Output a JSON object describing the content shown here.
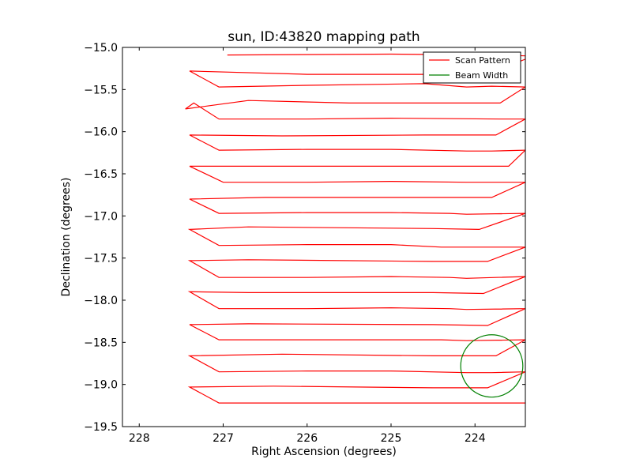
{
  "chart_data": {
    "type": "line",
    "title": "sun, ID:43820 mapping path",
    "xlabel": "Right Ascension (degrees)",
    "ylabel": "Declination (degrees)",
    "xlim": [
      228.2,
      223.4
    ],
    "ylim": [
      -19.5,
      -15.0
    ],
    "xticks": [
      228,
      227,
      226,
      225,
      224
    ],
    "yticks": [
      -15.0,
      -15.5,
      -16.0,
      -16.5,
      -17.0,
      -17.5,
      -18.0,
      -18.5,
      -19.0,
      -19.5
    ],
    "xtick_labels": [
      "228",
      "227",
      "226",
      "225",
      "224"
    ],
    "ytick_labels": [
      "−15.0",
      "−15.5",
      "−16.0",
      "−16.5",
      "−17.0",
      "−17.5",
      "−18.0",
      "−18.5",
      "−19.0",
      "−19.5"
    ],
    "grid": false,
    "legend_position": "top-right",
    "series": [
      {
        "name": "Scan Pattern",
        "color": "#ff0000",
        "points": [
          [
            226.95,
            -15.09
          ],
          [
            225.0,
            -15.08
          ],
          [
            223.8,
            -15.09
          ],
          [
            223.4,
            -15.1
          ],
          [
            223.4,
            -15.14
          ],
          [
            223.8,
            -15.3
          ],
          [
            224.4,
            -15.32
          ],
          [
            226.0,
            -15.32
          ],
          [
            227.4,
            -15.28
          ],
          [
            227.05,
            -15.47
          ],
          [
            226.0,
            -15.45
          ],
          [
            224.6,
            -15.43
          ],
          [
            224.1,
            -15.47
          ],
          [
            223.8,
            -15.46
          ],
          [
            223.4,
            -15.47
          ],
          [
            223.7,
            -15.66
          ],
          [
            224.5,
            -15.66
          ],
          [
            225.5,
            -15.66
          ],
          [
            226.7,
            -15.63
          ],
          [
            227.45,
            -15.73
          ],
          [
            227.35,
            -15.66
          ],
          [
            227.05,
            -15.85
          ],
          [
            226.0,
            -15.85
          ],
          [
            225.0,
            -15.84
          ],
          [
            223.7,
            -15.85
          ],
          [
            223.4,
            -15.85
          ],
          [
            223.75,
            -16.04
          ],
          [
            224.6,
            -16.04
          ],
          [
            226.3,
            -16.05
          ],
          [
            227.4,
            -16.04
          ],
          [
            227.05,
            -16.22
          ],
          [
            226.0,
            -16.21
          ],
          [
            225.0,
            -16.21
          ],
          [
            224.1,
            -16.23
          ],
          [
            223.8,
            -16.23
          ],
          [
            223.4,
            -16.22
          ],
          [
            223.6,
            -16.41
          ],
          [
            224.5,
            -16.41
          ],
          [
            226.2,
            -16.41
          ],
          [
            227.4,
            -16.41
          ],
          [
            227.0,
            -16.6
          ],
          [
            226.0,
            -16.6
          ],
          [
            225.0,
            -16.59
          ],
          [
            224.1,
            -16.6
          ],
          [
            223.8,
            -16.6
          ],
          [
            223.4,
            -16.6
          ],
          [
            223.8,
            -16.78
          ],
          [
            224.5,
            -16.78
          ],
          [
            226.5,
            -16.78
          ],
          [
            227.4,
            -16.8
          ],
          [
            227.05,
            -16.97
          ],
          [
            226.0,
            -16.96
          ],
          [
            225.0,
            -16.96
          ],
          [
            224.3,
            -16.97
          ],
          [
            224.1,
            -16.98
          ],
          [
            223.4,
            -16.97
          ],
          [
            223.95,
            -17.16
          ],
          [
            224.5,
            -17.15
          ],
          [
            226.7,
            -17.13
          ],
          [
            227.4,
            -17.16
          ],
          [
            227.05,
            -17.35
          ],
          [
            226.0,
            -17.34
          ],
          [
            225.0,
            -17.34
          ],
          [
            224.4,
            -17.37
          ],
          [
            224.1,
            -17.37
          ],
          [
            223.4,
            -17.37
          ],
          [
            223.85,
            -17.54
          ],
          [
            224.5,
            -17.54
          ],
          [
            226.7,
            -17.52
          ],
          [
            227.4,
            -17.53
          ],
          [
            227.05,
            -17.73
          ],
          [
            226.0,
            -17.73
          ],
          [
            225.0,
            -17.72
          ],
          [
            224.3,
            -17.73
          ],
          [
            224.1,
            -17.74
          ],
          [
            223.4,
            -17.72
          ],
          [
            223.9,
            -17.92
          ],
          [
            224.5,
            -17.91
          ],
          [
            226.7,
            -17.91
          ],
          [
            227.4,
            -17.9
          ],
          [
            227.05,
            -18.1
          ],
          [
            226.0,
            -18.1
          ],
          [
            225.0,
            -18.09
          ],
          [
            224.3,
            -18.1
          ],
          [
            224.1,
            -18.11
          ],
          [
            223.4,
            -18.1
          ],
          [
            223.85,
            -18.3
          ],
          [
            224.5,
            -18.29
          ],
          [
            226.7,
            -18.28
          ],
          [
            227.4,
            -18.29
          ],
          [
            227.05,
            -18.47
          ],
          [
            226.0,
            -18.47
          ],
          [
            225.0,
            -18.47
          ],
          [
            224.4,
            -18.47
          ],
          [
            224.1,
            -18.48
          ],
          [
            223.4,
            -18.47
          ],
          [
            223.75,
            -18.66
          ],
          [
            224.5,
            -18.66
          ],
          [
            226.3,
            -18.64
          ],
          [
            227.4,
            -18.66
          ],
          [
            227.05,
            -18.85
          ],
          [
            226.0,
            -18.84
          ],
          [
            225.0,
            -18.84
          ],
          [
            224.1,
            -18.86
          ],
          [
            223.8,
            -18.86
          ],
          [
            223.4,
            -18.85
          ],
          [
            223.85,
            -19.04
          ],
          [
            224.5,
            -19.04
          ],
          [
            226.4,
            -19.02
          ],
          [
            227.4,
            -19.03
          ],
          [
            227.05,
            -19.22
          ],
          [
            226.0,
            -19.22
          ],
          [
            225.0,
            -19.22
          ],
          [
            224.1,
            -19.22
          ],
          [
            223.8,
            -19.22
          ],
          [
            223.4,
            -19.22
          ]
        ]
      },
      {
        "name": "Beam Width",
        "color": "#008000",
        "circle": {
          "center": [
            223.8,
            -18.78
          ],
          "radius": 0.37
        }
      }
    ]
  }
}
